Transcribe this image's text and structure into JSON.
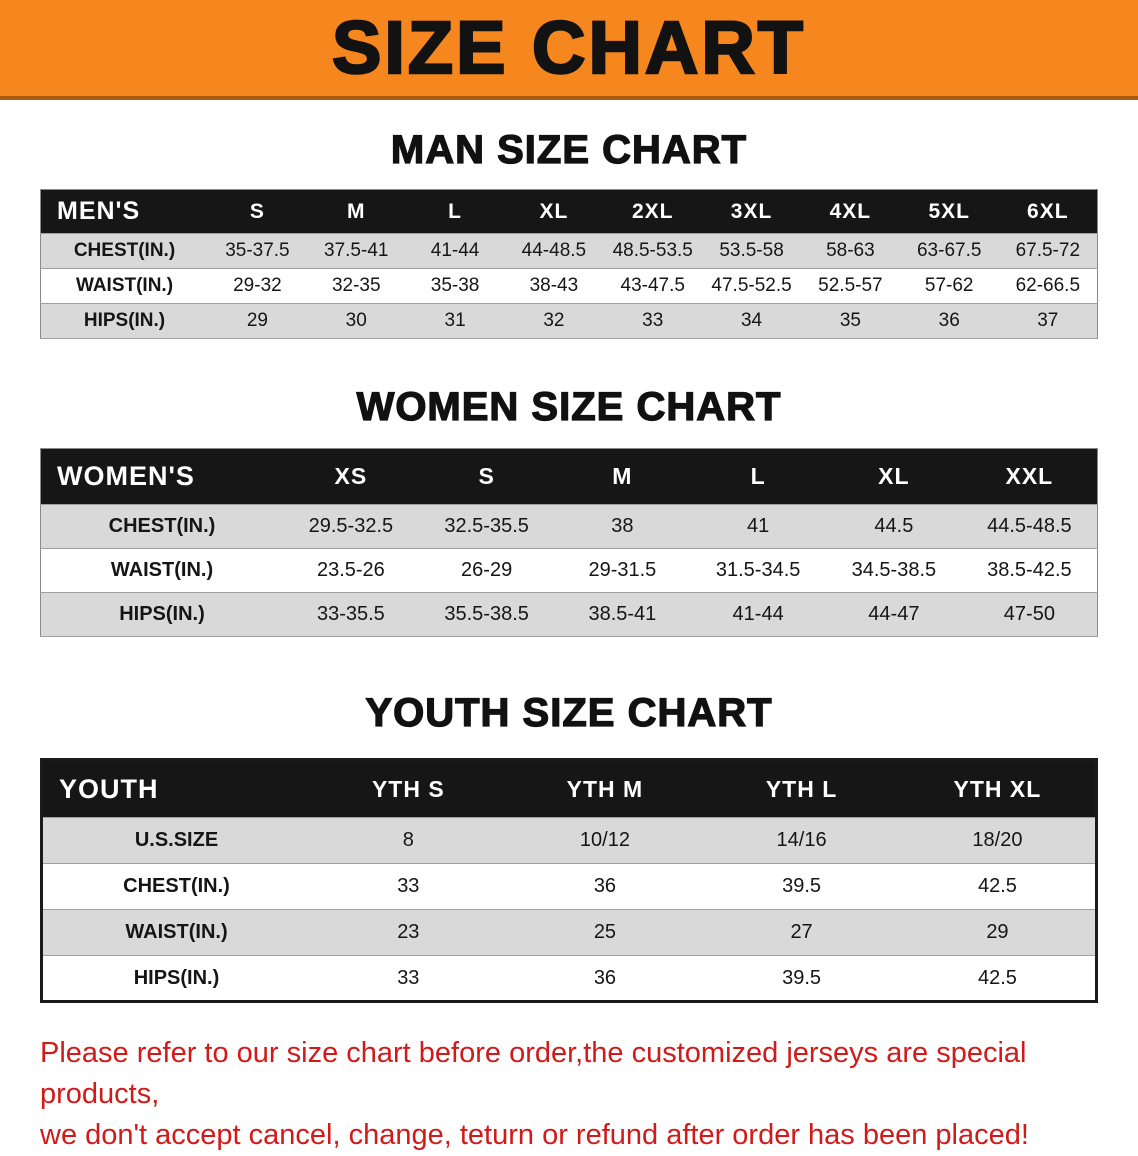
{
  "banner": {
    "title": "SIZE CHART",
    "bg_color": "#f6871f"
  },
  "sections": [
    {
      "id": "men",
      "heading": "MAN SIZE CHART",
      "table": {
        "header": [
          "MEN'S",
          "S",
          "M",
          "L",
          "XL",
          "2XL",
          "3XL",
          "4XL",
          "5XL",
          "6XL"
        ],
        "rows": [
          [
            "CHEST(IN.)",
            "35-37.5",
            "37.5-41",
            "41-44",
            "44-48.5",
            "48.5-53.5",
            "53.5-58",
            "58-63",
            "63-67.5",
            "67.5-72"
          ],
          [
            "WAIST(IN.)",
            "29-32",
            "32-35",
            "35-38",
            "38-43",
            "43-47.5",
            "47.5-52.5",
            "52.5-57",
            "57-62",
            "62-66.5"
          ],
          [
            "HIPS(IN.)",
            "29",
            "30",
            "31",
            "32",
            "33",
            "34",
            "35",
            "36",
            "37"
          ]
        ]
      }
    },
    {
      "id": "women",
      "heading": "WOMEN SIZE CHART",
      "table": {
        "header": [
          "WOMEN'S",
          "XS",
          "S",
          "M",
          "L",
          "XL",
          "XXL"
        ],
        "rows": [
          [
            "CHEST(IN.)",
            "29.5-32.5",
            "32.5-35.5",
            "38",
            "41",
            "44.5",
            "44.5-48.5"
          ],
          [
            "WAIST(IN.)",
            "23.5-26",
            "26-29",
            "29-31.5",
            "31.5-34.5",
            "34.5-38.5",
            "38.5-42.5"
          ],
          [
            "HIPS(IN.)",
            "33-35.5",
            "35.5-38.5",
            "38.5-41",
            "41-44",
            "44-47",
            "47-50"
          ]
        ]
      }
    },
    {
      "id": "youth",
      "heading": "YOUTH SIZE CHART",
      "table": {
        "header": [
          "YOUTH",
          "YTH S",
          "YTH M",
          "YTH L",
          "YTH XL"
        ],
        "rows": [
          [
            "U.S.SIZE",
            "8",
            "10/12",
            "14/16",
            "18/20"
          ],
          [
            "CHEST(IN.)",
            "33",
            "36",
            "39.5",
            "42.5"
          ],
          [
            "WAIST(IN.)",
            "23",
            "25",
            "27",
            "29"
          ],
          [
            "HIPS(IN.)",
            "33",
            "36",
            "39.5",
            "42.5"
          ]
        ]
      }
    }
  ],
  "disclaimer": {
    "lines": [
      "Please refer to our size chart before order,the customized jerseys are special products,",
      "we don't accept cancel, change, teturn or refund after order has been placed!"
    ],
    "color": "#d11a1a"
  }
}
